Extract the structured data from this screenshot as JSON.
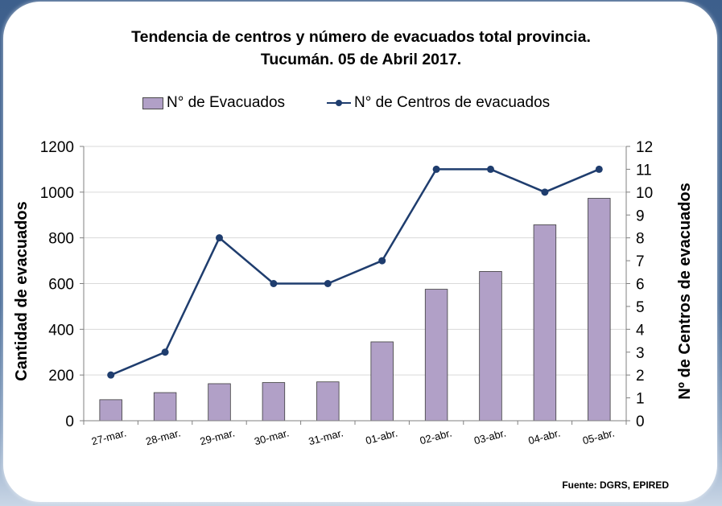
{
  "chart_data": {
    "type": "bar",
    "title": "Tendencia de centros y número de evacuados total provincia.",
    "subtitle": "Tucumán. 05 de Abril 2017.",
    "categories": [
      "27-mar.",
      "28-mar.",
      "29-mar.",
      "30-mar.",
      "31-mar.",
      "01-abr.",
      "02-abr.",
      "03-abr.",
      "04-abr.",
      "05-abr."
    ],
    "series": [
      {
        "name": "N° de Evacuados",
        "type": "bar",
        "axis": "left",
        "color": "#b1a0c7",
        "values": [
          92,
          123,
          162,
          167,
          170,
          345,
          575,
          653,
          857,
          973
        ]
      },
      {
        "name": "N° de Centros de evacuados",
        "type": "line",
        "axis": "right",
        "color": "#1f3d6e",
        "values": [
          2,
          3,
          8,
          6,
          6,
          7,
          11,
          11,
          10,
          11
        ]
      }
    ],
    "ylabel": "Cantidad de evacuados",
    "y2label": "Nº de Centros de evacuados",
    "ylim": [
      0,
      1200
    ],
    "y2lim": [
      0,
      12
    ],
    "yticks": [
      "0",
      "200",
      "400",
      "600",
      "800",
      "1000",
      "1200"
    ],
    "y2ticks": [
      "0",
      "1",
      "2",
      "3",
      "4",
      "5",
      "6",
      "7",
      "8",
      "9",
      "10",
      "11",
      "12"
    ],
    "grid": true,
    "legend": "top"
  },
  "source": "Fuente: DGRS, EPIRED"
}
